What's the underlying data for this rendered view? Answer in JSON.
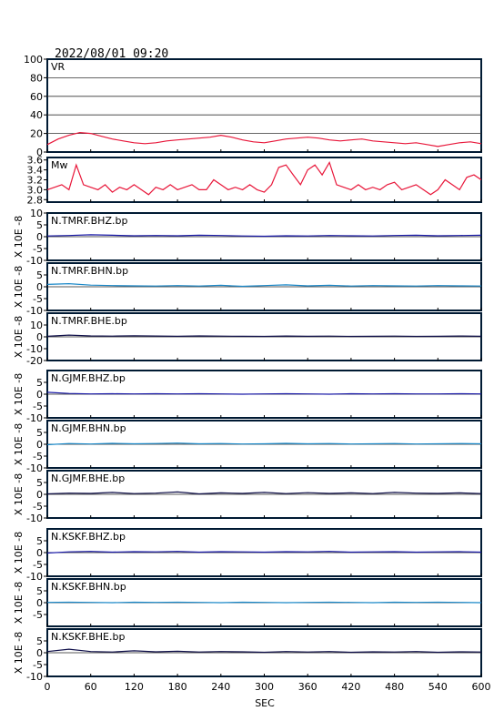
{
  "header": {
    "datetime": "2022/08/01 09:20"
  },
  "x_axis": {
    "label": "SEC",
    "range": [
      0,
      600
    ],
    "ticks": [
      0,
      60,
      120,
      180,
      240,
      300,
      360,
      420,
      480,
      540,
      600
    ]
  },
  "colors": {
    "frame": "#001a33",
    "vr_mw_line": "#e8173a",
    "bhz": "#1a1aa8",
    "bhn": "#1a88c8",
    "bhe": "#10104a"
  },
  "chart_data": [
    {
      "type": "line",
      "id": "vr",
      "label": "VR",
      "ylim": [
        0,
        100
      ],
      "yticks": [
        0,
        20,
        40,
        60,
        80,
        100
      ],
      "grid": true,
      "x": [
        0,
        15,
        30,
        45,
        60,
        75,
        90,
        105,
        120,
        135,
        150,
        165,
        180,
        195,
        210,
        225,
        240,
        255,
        270,
        285,
        300,
        315,
        330,
        345,
        360,
        375,
        390,
        405,
        420,
        435,
        450,
        465,
        480,
        495,
        510,
        525,
        540,
        555,
        570,
        585,
        600
      ],
      "values": [
        8,
        14,
        18,
        21,
        20,
        17,
        14,
        12,
        10,
        9,
        10,
        12,
        13,
        14,
        15,
        16,
        18,
        16,
        13,
        11,
        10,
        12,
        14,
        15,
        16,
        15,
        13,
        12,
        13,
        14,
        12,
        11,
        10,
        9,
        10,
        8,
        6,
        8,
        10,
        11,
        9
      ]
    },
    {
      "type": "line",
      "id": "mw",
      "label": "Mw",
      "ylim": [
        2.75,
        3.65
      ],
      "yticks": [
        2.8,
        3.0,
        3.2,
        3.4,
        3.6
      ],
      "ytick_labels": [
        "2.8",
        "3.0",
        "3.2",
        "3.4",
        "3.6"
      ],
      "x": [
        0,
        10,
        20,
        30,
        40,
        50,
        60,
        70,
        80,
        90,
        100,
        110,
        120,
        130,
        140,
        150,
        160,
        170,
        180,
        190,
        200,
        210,
        220,
        230,
        240,
        250,
        260,
        270,
        280,
        290,
        300,
        310,
        320,
        330,
        340,
        350,
        360,
        370,
        380,
        390,
        400,
        410,
        420,
        430,
        440,
        450,
        460,
        470,
        480,
        490,
        500,
        510,
        520,
        530,
        540,
        550,
        560,
        570,
        580,
        590,
        600
      ],
      "values": [
        3.0,
        3.05,
        3.1,
        3.0,
        3.5,
        3.1,
        3.05,
        3.0,
        3.1,
        2.95,
        3.05,
        3.0,
        3.1,
        3.0,
        2.9,
        3.05,
        3.0,
        3.1,
        3.0,
        3.05,
        3.1,
        3.0,
        3.0,
        3.2,
        3.1,
        3.0,
        3.05,
        3.0,
        3.1,
        3.0,
        2.95,
        3.1,
        3.45,
        3.5,
        3.3,
        3.1,
        3.4,
        3.5,
        3.3,
        3.55,
        3.1,
        3.05,
        3.0,
        3.1,
        3.0,
        3.05,
        3.0,
        3.1,
        3.15,
        3.0,
        3.05,
        3.1,
        3.0,
        2.9,
        3.0,
        3.2,
        3.1,
        3.0,
        3.25,
        3.3,
        3.2
      ]
    },
    {
      "type": "line",
      "id": "tmrf-bhz",
      "label": "N.TMRF.BHZ.bp",
      "ylabel": "X 10E -8",
      "ylim": [
        -10,
        10
      ],
      "yticks": [
        -10,
        -5,
        0,
        5,
        10
      ],
      "x": [
        0,
        30,
        60,
        90,
        120,
        150,
        180,
        210,
        240,
        270,
        300,
        330,
        360,
        390,
        420,
        450,
        480,
        510,
        540,
        570,
        600
      ],
      "values": [
        0.3,
        0.5,
        0.8,
        0.6,
        0.4,
        0.5,
        0.4,
        0.6,
        0.5,
        0.3,
        0.2,
        0.4,
        0.3,
        0.5,
        0.4,
        0.3,
        0.5,
        0.6,
        0.4,
        0.5,
        0.6
      ]
    },
    {
      "type": "line",
      "id": "tmrf-bhn",
      "label": "N.TMRF.BHN.bp",
      "ylabel": "X 10E -8",
      "ylim": [
        -10,
        10
      ],
      "yticks": [
        -10,
        -5,
        0,
        5
      ],
      "x": [
        0,
        30,
        60,
        90,
        120,
        150,
        180,
        210,
        240,
        270,
        300,
        330,
        360,
        390,
        420,
        450,
        480,
        510,
        540,
        570,
        600
      ],
      "values": [
        1.0,
        1.3,
        0.7,
        0.5,
        0.4,
        0.3,
        0.5,
        0.3,
        0.6,
        0.2,
        0.5,
        0.8,
        0.4,
        0.6,
        0.3,
        0.5,
        0.4,
        0.3,
        0.5,
        0.4,
        0.3
      ]
    },
    {
      "type": "line",
      "id": "tmrf-bhe",
      "label": "N.TMRF.BHE.bp",
      "ylabel": "X 10E -8",
      "ylim": [
        -20,
        20
      ],
      "yticks": [
        -20,
        -10,
        0,
        10
      ],
      "x": [
        0,
        30,
        60,
        90,
        120,
        150,
        180,
        210,
        240,
        270,
        300,
        330,
        360,
        390,
        420,
        450,
        480,
        510,
        540,
        570,
        600
      ],
      "values": [
        0.5,
        1.5,
        0.8,
        0.6,
        0.9,
        0.7,
        0.5,
        0.8,
        0.6,
        0.5,
        0.4,
        0.7,
        0.5,
        0.6,
        0.4,
        0.5,
        0.6,
        0.4,
        0.5,
        0.7,
        0.5
      ]
    },
    {
      "type": "line",
      "id": "gjmf-bhz",
      "label": "N.GJMF.BHZ.bp",
      "ylabel": "X 10E -8",
      "ylim": [
        -10,
        10
      ],
      "yticks": [
        -10,
        -5,
        0,
        5
      ],
      "x": [
        0,
        30,
        60,
        90,
        120,
        150,
        180,
        210,
        240,
        270,
        300,
        330,
        360,
        390,
        420,
        450,
        480,
        510,
        540,
        570,
        600
      ],
      "values": [
        0.8,
        0.3,
        0.1,
        0.2,
        0.1,
        0.2,
        0.1,
        0.2,
        0.1,
        0.0,
        0.1,
        0.2,
        0.1,
        0.0,
        0.2,
        0.1,
        0.2,
        0.1,
        0.1,
        0.2,
        0.1
      ]
    },
    {
      "type": "line",
      "id": "gjmf-bhn",
      "label": "N.GJMF.BHN.bp",
      "ylabel": "X 10E -8",
      "ylim": [
        -10,
        10
      ],
      "yticks": [
        -10,
        -5,
        0,
        5
      ],
      "x": [
        0,
        30,
        60,
        90,
        120,
        150,
        180,
        210,
        240,
        270,
        300,
        330,
        360,
        390,
        420,
        450,
        480,
        510,
        540,
        570,
        600
      ],
      "values": [
        -0.2,
        0.3,
        0.1,
        0.4,
        0.2,
        0.3,
        0.5,
        0.2,
        0.3,
        0.1,
        0.2,
        0.4,
        0.2,
        0.3,
        0.1,
        0.2,
        0.3,
        0.1,
        0.2,
        0.3,
        0.2
      ]
    },
    {
      "type": "line",
      "id": "gjmf-bhe",
      "label": "N.GJMF.BHE.bp",
      "ylabel": "X 10E -8",
      "ylim": [
        -10,
        10
      ],
      "yticks": [
        -10,
        -5,
        0,
        5
      ],
      "x": [
        0,
        30,
        60,
        90,
        120,
        150,
        180,
        210,
        240,
        270,
        300,
        330,
        360,
        390,
        420,
        450,
        480,
        510,
        540,
        570,
        600
      ],
      "values": [
        0.2,
        0.5,
        0.4,
        0.8,
        0.3,
        0.5,
        1.0,
        0.2,
        0.6,
        0.4,
        0.8,
        0.3,
        0.7,
        0.4,
        0.6,
        0.3,
        0.8,
        0.5,
        0.4,
        0.6,
        0.3
      ]
    },
    {
      "type": "line",
      "id": "kskf-bhz",
      "label": "N.KSKF.BHZ.bp",
      "ylabel": "X 10E -8",
      "ylim": [
        -10,
        10
      ],
      "yticks": [
        -10,
        -5,
        0,
        5
      ],
      "x": [
        0,
        30,
        60,
        90,
        120,
        150,
        180,
        210,
        240,
        270,
        300,
        330,
        360,
        390,
        420,
        450,
        480,
        510,
        540,
        570,
        600
      ],
      "values": [
        -0.2,
        0.3,
        0.5,
        0.2,
        0.4,
        0.3,
        0.5,
        0.2,
        0.4,
        0.3,
        0.2,
        0.4,
        0.3,
        0.5,
        0.2,
        0.3,
        0.4,
        0.2,
        0.3,
        0.4,
        0.2
      ]
    },
    {
      "type": "line",
      "id": "kskf-bhn",
      "label": "N.KSKF.BHN.bp",
      "ylabel": "X 10E -8",
      "ylim": [
        -10,
        10
      ],
      "yticks": [
        -5,
        0,
        5
      ],
      "x": [
        0,
        30,
        60,
        90,
        120,
        150,
        180,
        210,
        240,
        270,
        300,
        330,
        360,
        390,
        420,
        450,
        480,
        510,
        540,
        570,
        600
      ],
      "values": [
        0.1,
        0.2,
        0.1,
        0.0,
        0.2,
        0.1,
        0.2,
        0.1,
        0.0,
        0.2,
        0.1,
        0.0,
        0.1,
        0.2,
        0.1,
        0.0,
        0.2,
        0.1,
        0.2,
        0.1,
        0.0
      ]
    },
    {
      "type": "line",
      "id": "kskf-bhe",
      "label": "N.KSKF.BHE.bp",
      "ylabel": "X 10E -8",
      "ylim": [
        -10,
        10
      ],
      "yticks": [
        -10,
        -5,
        0,
        5
      ],
      "x": [
        0,
        30,
        60,
        90,
        120,
        150,
        180,
        210,
        240,
        270,
        300,
        330,
        360,
        390,
        420,
        450,
        480,
        510,
        540,
        570,
        600
      ],
      "values": [
        0.5,
        1.5,
        0.5,
        0.3,
        0.8,
        0.4,
        0.6,
        0.3,
        0.5,
        0.4,
        0.2,
        0.5,
        0.3,
        0.5,
        0.2,
        0.4,
        0.3,
        0.5,
        0.2,
        0.4,
        0.3
      ]
    }
  ]
}
